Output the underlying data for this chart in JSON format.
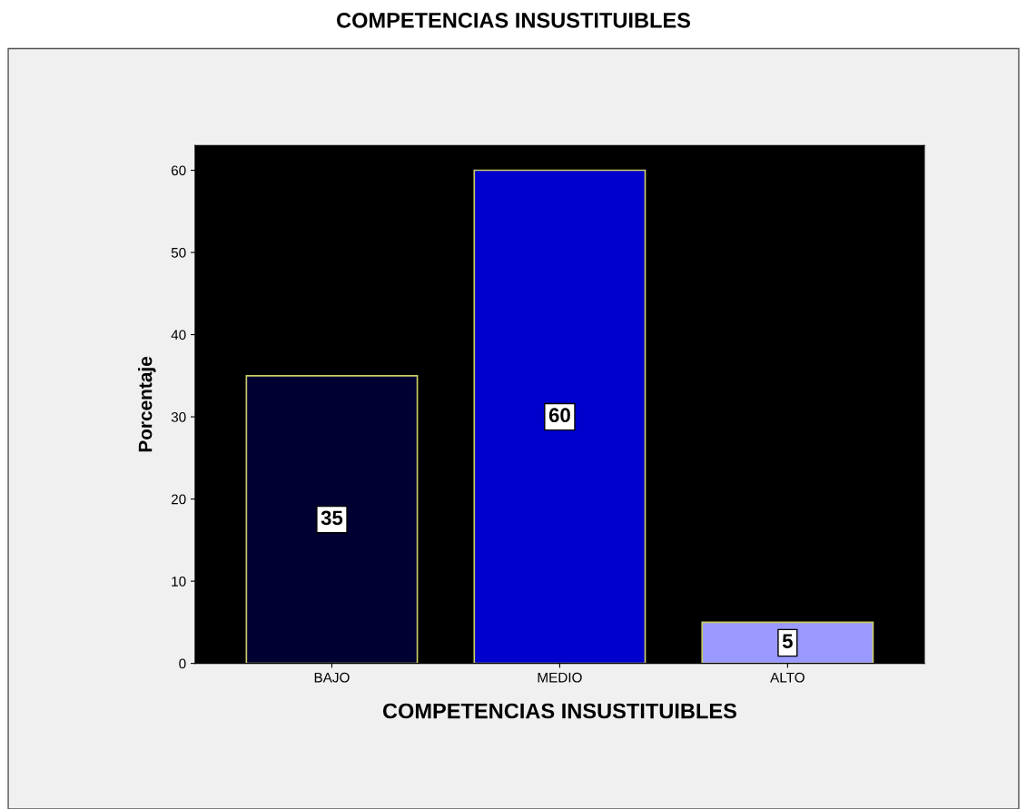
{
  "chart_data": {
    "type": "bar",
    "title": "COMPETENCIAS INSUSTITUIBLES",
    "xlabel": "COMPETENCIAS INSUSTITUIBLES",
    "ylabel": "Porcentaje",
    "categories": [
      "BAJO",
      "MEDIO",
      "ALTO"
    ],
    "values": [
      35,
      60,
      5
    ],
    "colors": [
      "#000033",
      "#0000cc",
      "#9999ff"
    ],
    "ylim": [
      0,
      63
    ],
    "yticks": [
      0,
      10,
      20,
      30,
      40,
      50,
      60
    ],
    "data_labels": true,
    "grid": false,
    "legend": false
  }
}
